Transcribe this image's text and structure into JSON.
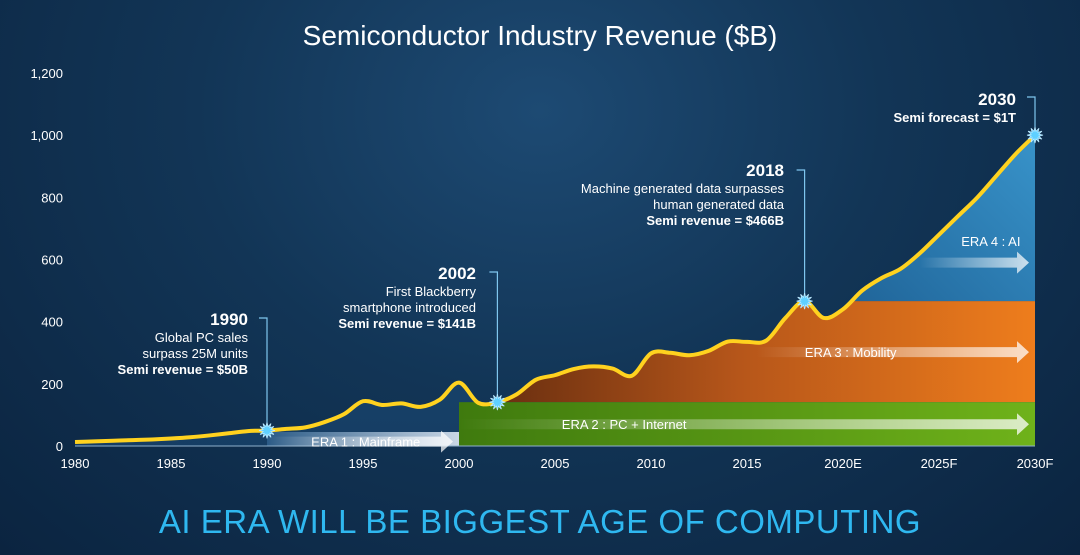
{
  "chart_data": {
    "type": "area",
    "title": "Semiconductor Industry Revenue ($B)",
    "subtitle": "AI ERA WILL BE BIGGEST AGE OF COMPUTING",
    "ylim": [
      0,
      1200
    ],
    "yticks": [
      0,
      200,
      400,
      600,
      800,
      1000,
      1200
    ],
    "ytick_labels": [
      "0",
      "200",
      "400",
      "600",
      "800",
      "1,000",
      "1,200"
    ],
    "xticks": [
      1980,
      1985,
      1990,
      1995,
      2000,
      2005,
      2010,
      2015,
      2020,
      2025,
      2030
    ],
    "xtick_labels": [
      "1980",
      "1985",
      "1990",
      "1995",
      "2000",
      "2005",
      "2010",
      "2015",
      "2020E",
      "2025F",
      "2030F"
    ],
    "grid": false,
    "series": [
      {
        "x": [
          1980,
          1981,
          1982,
          1983,
          1984,
          1985,
          1986,
          1987,
          1988,
          1989,
          1990,
          1991,
          1992,
          1993,
          1994,
          1995,
          1996,
          1997,
          1998,
          1999,
          2000,
          2001,
          2002,
          2003,
          2004,
          2005,
          2006,
          2007,
          2008,
          2009,
          2010,
          2011,
          2012,
          2013,
          2014,
          2015,
          2016,
          2017,
          2018,
          2019,
          2020,
          2021,
          2022,
          2023,
          2024,
          2025,
          2026,
          2027,
          2028,
          2029,
          2030
        ],
        "values": [
          13,
          15,
          17,
          19,
          21,
          24,
          28,
          34,
          41,
          48,
          50,
          55,
          60,
          77,
          102,
          144,
          132,
          137,
          126,
          149,
          204,
          139,
          141,
          166,
          213,
          228,
          248,
          256,
          249,
          226,
          298,
          300,
          292,
          306,
          336,
          335,
          339,
          412,
          466,
          412,
          440,
          500,
          540,
          570,
          620,
          680,
          740,
          800,
          870,
          940,
          1000
        ]
      }
    ],
    "eras": [
      {
        "label": "ERA 1 : Mainframe",
        "x_start": 1980,
        "x_end": 2000,
        "y_top": 0
      },
      {
        "label": "ERA 2 : PC + Internet",
        "x_start": 2000,
        "x_end": 2030,
        "y_top": 141
      },
      {
        "label": "ERA 3 : Mobility",
        "x_start": 2002,
        "x_end": 2030,
        "y_top": 466
      },
      {
        "label": "ERA 4 : AI",
        "x_start": 2018,
        "x_end": 2030,
        "y_top": 1000
      }
    ],
    "annotations": [
      {
        "x": 1990,
        "y": 50,
        "year": "1990",
        "lines": [
          "Global PC sales",
          "surpass 25M units"
        ],
        "revenue": "Semi revenue = $50B"
      },
      {
        "x": 2002,
        "y": 141,
        "year": "2002",
        "lines": [
          "First Blackberry",
          "smartphone introduced"
        ],
        "revenue": "Semi revenue = $141B"
      },
      {
        "x": 2018,
        "y": 466,
        "year": "2018",
        "lines": [
          "Machine generated data surpasses",
          "human generated data"
        ],
        "revenue": "Semi revenue = $466B"
      },
      {
        "x": 2030,
        "y": 1000,
        "year": "2030",
        "lines": [],
        "revenue": "Semi forecast = $1T"
      }
    ],
    "colors": {
      "line": "#ffd21f",
      "era1": "#c9d7e6",
      "era2": "#6fb21a",
      "era3": "#ee7d1c",
      "era4": "#3c9bd2",
      "subtitle": "#2fb8f0"
    }
  }
}
